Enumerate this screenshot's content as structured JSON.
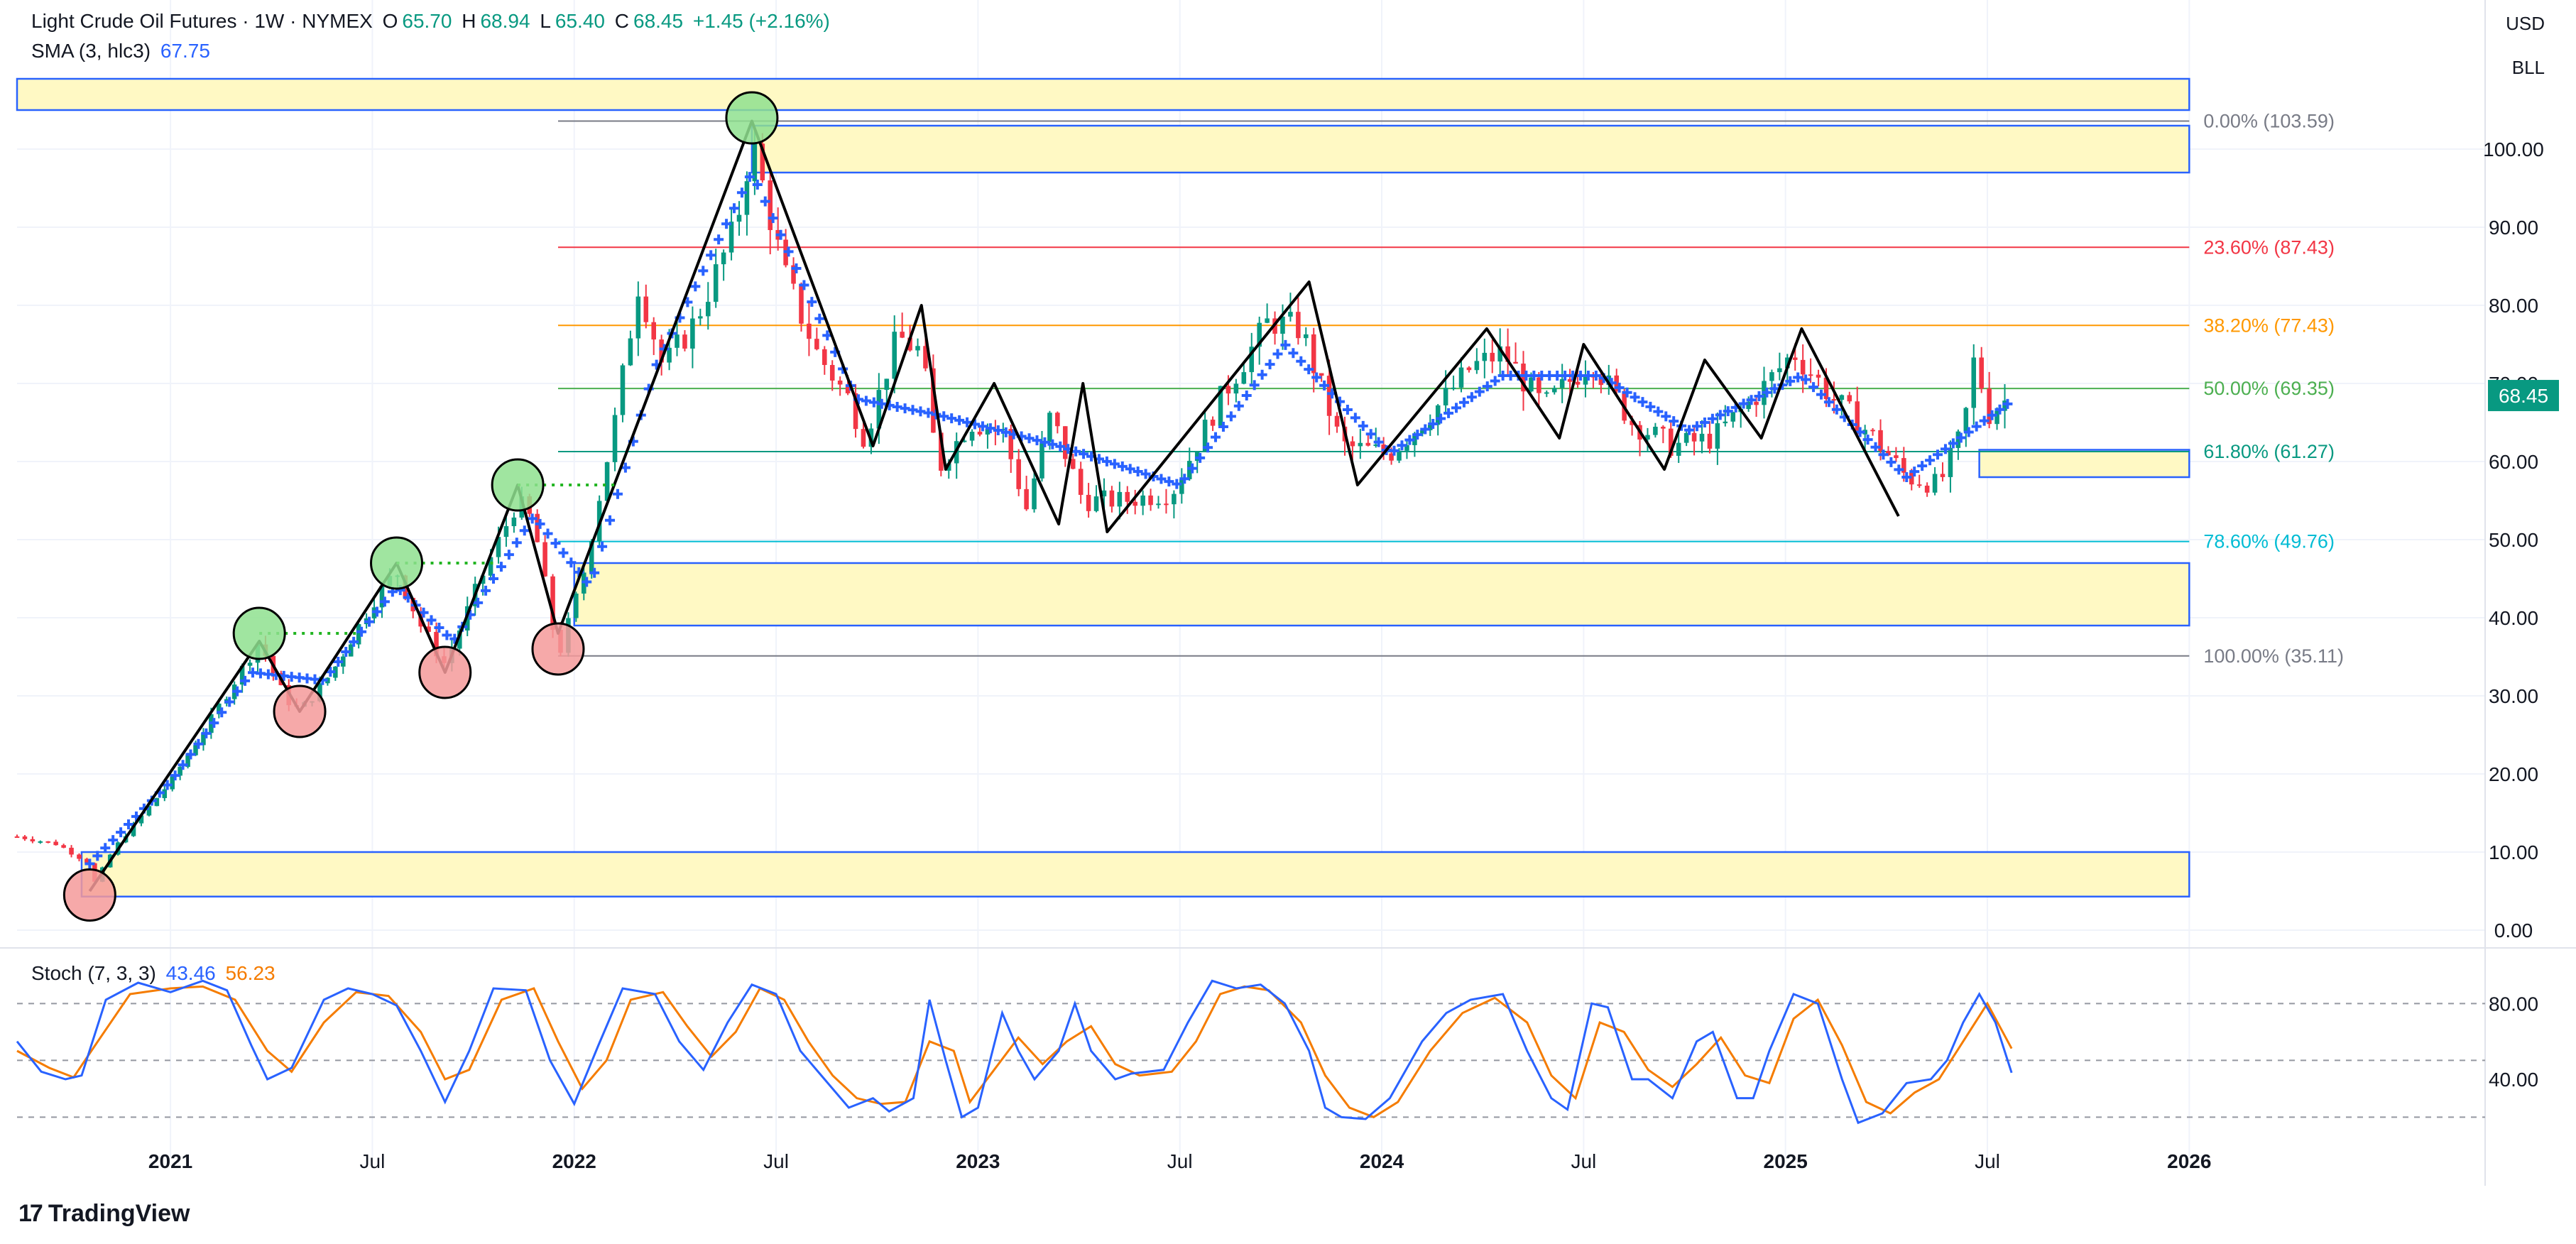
{
  "header": {
    "symbol": "Light Crude Oil Futures · 1W · NYMEX",
    "open_label": "O",
    "open": "65.70",
    "high_label": "H",
    "high": "68.94",
    "low_label": "L",
    "low": "65.40",
    "close_label": "C",
    "close": "68.45",
    "change": "+1.45 (+2.16%)",
    "sma_label": "SMA (3, hlc3)",
    "sma_value": "67.75"
  },
  "axis_buttons": {
    "currency": "USD",
    "scale": "BLL"
  },
  "last_price": "68.45",
  "colors": {
    "up": "#089981",
    "down": "#f23645",
    "sma": "#2962ff",
    "stoch_k": "#2962ff",
    "stoch_d": "#f57c00",
    "zone_fill": "#fff9c4",
    "zone_border": "#2962ff"
  },
  "chart_data": {
    "type": "candlestick",
    "price_axis": {
      "ticks": [
        "0.00",
        "10.00",
        "20.00",
        "30.00",
        "40.00",
        "50.00",
        "60.00",
        "70.00",
        "80.00",
        "90.00",
        "100.00"
      ],
      "range": [
        0,
        110
      ]
    },
    "time_axis": {
      "labels": [
        {
          "t": 2021.0,
          "label": "2021"
        },
        {
          "t": 2021.5,
          "label": "Jul"
        },
        {
          "t": 2022.0,
          "label": "2022"
        },
        {
          "t": 2022.5,
          "label": "Jul"
        },
        {
          "t": 2023.0,
          "label": "2023"
        },
        {
          "t": 2023.5,
          "label": "Jul"
        },
        {
          "t": 2024.0,
          "label": "2024"
        },
        {
          "t": 2024.5,
          "label": "Jul"
        },
        {
          "t": 2025.0,
          "label": "2025"
        },
        {
          "t": 2025.5,
          "label": "Jul"
        },
        {
          "t": 2026.0,
          "label": "2026"
        }
      ],
      "range": [
        2020.62,
        2026.68
      ]
    },
    "price_path": [
      [
        2020.62,
        12.0
      ],
      [
        2020.72,
        11.0
      ],
      [
        2020.8,
        8.5
      ],
      [
        2020.8,
        5.0
      ],
      [
        2020.86,
        10.5
      ],
      [
        2021.0,
        19.0
      ],
      [
        2021.1,
        27.0
      ],
      [
        2021.22,
        37.0
      ],
      [
        2021.28,
        30.0
      ],
      [
        2021.32,
        28.0
      ],
      [
        2021.4,
        33.0
      ],
      [
        2021.5,
        42.0
      ],
      [
        2021.56,
        46.0
      ],
      [
        2021.62,
        39.0
      ],
      [
        2021.68,
        34.0
      ],
      [
        2021.76,
        44.0
      ],
      [
        2021.86,
        55.0
      ],
      [
        2021.9,
        52.0
      ],
      [
        2021.96,
        35.0
      ],
      [
        2022.02,
        45.0
      ],
      [
        2022.1,
        65.0
      ],
      [
        2022.16,
        83.0
      ],
      [
        2022.22,
        72.0
      ],
      [
        2022.3,
        78.0
      ],
      [
        2022.4,
        90.0
      ],
      [
        2022.44,
        101.0
      ],
      [
        2022.52,
        84.0
      ],
      [
        2022.6,
        74.0
      ],
      [
        2022.68,
        68.0
      ],
      [
        2022.72,
        63.0
      ],
      [
        2022.8,
        76.0
      ],
      [
        2022.86,
        74.0
      ],
      [
        2022.9,
        59.0
      ],
      [
        2022.98,
        65.0
      ],
      [
        2023.06,
        64.0
      ],
      [
        2023.12,
        54.0
      ],
      [
        2023.18,
        66.0
      ],
      [
        2023.26,
        55.0
      ],
      [
        2023.36,
        55.0
      ],
      [
        2023.48,
        56.0
      ],
      [
        2023.6,
        68.0
      ],
      [
        2023.72,
        78.0
      ],
      [
        2023.8,
        77.0
      ],
      [
        2023.9,
        62.0
      ],
      [
        2024.02,
        61.0
      ],
      [
        2024.12,
        66.0
      ],
      [
        2024.22,
        72.0
      ],
      [
        2024.3,
        74.0
      ],
      [
        2024.4,
        67.0
      ],
      [
        2024.52,
        73.0
      ],
      [
        2024.62,
        65.0
      ],
      [
        2024.72,
        62.0
      ],
      [
        2024.82,
        63.0
      ],
      [
        2024.92,
        68.0
      ],
      [
        2025.02,
        74.0
      ],
      [
        2025.12,
        68.0
      ],
      [
        2025.22,
        63.0
      ],
      [
        2025.3,
        58.0
      ],
      [
        2025.38,
        57.0
      ],
      [
        2025.44,
        64.0
      ],
      [
        2025.47,
        74.0
      ],
      [
        2025.5,
        66.0
      ],
      [
        2025.56,
        68.45
      ]
    ],
    "sma_crosses": [
      [
        2020.8,
        8.5
      ],
      [
        2021.0,
        19.0
      ],
      [
        2021.2,
        33.0
      ],
      [
        2021.38,
        32.0
      ],
      [
        2021.56,
        44.0
      ],
      [
        2021.7,
        37.0
      ],
      [
        2021.9,
        53.0
      ],
      [
        2022.04,
        44.0
      ],
      [
        2022.2,
        72.0
      ],
      [
        2022.44,
        97.0
      ],
      [
        2022.7,
        68.0
      ],
      [
        2022.9,
        66.0
      ],
      [
        2023.2,
        62.0
      ],
      [
        2023.5,
        57.0
      ],
      [
        2023.76,
        75.0
      ],
      [
        2024.02,
        61.0
      ],
      [
        2024.3,
        71.0
      ],
      [
        2024.54,
        71.0
      ],
      [
        2024.76,
        64.0
      ],
      [
        2025.04,
        71.0
      ],
      [
        2025.3,
        58.0
      ],
      [
        2025.56,
        67.75
      ]
    ],
    "zigzag": [
      [
        2020.8,
        5.0
      ],
      [
        2021.22,
        37.0
      ],
      [
        2021.32,
        28.0
      ],
      [
        2021.56,
        47.0
      ],
      [
        2021.68,
        33.0
      ],
      [
        2021.86,
        57.0
      ],
      [
        2021.96,
        38.0
      ],
      [
        2022.44,
        103.59
      ],
      [
        2022.74,
        62.0
      ],
      [
        2022.86,
        80.0
      ],
      [
        2022.92,
        59.0
      ],
      [
        2023.04,
        70.0
      ],
      [
        2023.2,
        52.0
      ],
      [
        2023.26,
        70.0
      ],
      [
        2023.32,
        51.0
      ],
      [
        2023.82,
        83.0
      ],
      [
        2023.94,
        57.0
      ],
      [
        2024.26,
        77.0
      ],
      [
        2024.44,
        63.0
      ],
      [
        2024.5,
        75.0
      ],
      [
        2024.7,
        59.0
      ],
      [
        2024.8,
        73.0
      ],
      [
        2024.94,
        63.0
      ],
      [
        2025.04,
        77.0
      ],
      [
        2025.28,
        53.0
      ]
    ],
    "pivot_highs": [
      [
        2021.22,
        38.0
      ],
      [
        2021.56,
        47.0
      ],
      [
        2021.86,
        57.0
      ],
      [
        2022.44,
        104.0
      ]
    ],
    "pivot_lows": [
      [
        2020.8,
        4.5
      ],
      [
        2021.32,
        28.0
      ],
      [
        2021.68,
        33.0
      ],
      [
        2021.96,
        36.0
      ]
    ],
    "zones": [
      {
        "t1": 2020.62,
        "t2": 2026.0,
        "top": 109.0,
        "bottom": 105.0
      },
      {
        "t1": 2022.44,
        "t2": 2026.0,
        "top": 103.0,
        "bottom": 97.0
      },
      {
        "t1": 2022.0,
        "t2": 2026.0,
        "top": 47.0,
        "bottom": 39.0
      },
      {
        "t1": 2025.48,
        "t2": 2026.0,
        "top": 61.5,
        "bottom": 58.0
      },
      {
        "t1": 2020.78,
        "t2": 2026.0,
        "top": 10.0,
        "bottom": 4.3
      }
    ],
    "fib_levels": [
      {
        "label": "0.00% (103.59)",
        "value": 103.59,
        "color": "#787b86"
      },
      {
        "label": "23.60% (87.43)",
        "value": 87.43,
        "color": "#f23645"
      },
      {
        "label": "38.20% (77.43)",
        "value": 77.43,
        "color": "#ff9800"
      },
      {
        "label": "50.00% (69.35)",
        "value": 69.35,
        "color": "#4caf50"
      },
      {
        "label": "61.80% (61.27)",
        "value": 61.27,
        "color": "#089981"
      },
      {
        "label": "78.60% (49.76)",
        "value": 49.76,
        "color": "#00bcd4"
      },
      {
        "label": "100.00% (35.11)",
        "value": 35.11,
        "color": "#787b86"
      }
    ],
    "fib_start_t": 2021.96,
    "fib_end_t": 2026.0,
    "stoch": {
      "label": "Stoch (7, 3, 3)",
      "k_value": "43.46",
      "d_value": "56.23",
      "axis_ticks": [
        "40.00",
        "80.00"
      ],
      "bands": [
        20,
        50,
        80
      ],
      "range": [
        10,
        100
      ],
      "k": [
        [
          2020.62,
          60
        ],
        [
          2020.68,
          44
        ],
        [
          2020.74,
          40
        ],
        [
          2020.78,
          42
        ],
        [
          2020.84,
          82
        ],
        [
          2020.92,
          91
        ],
        [
          2021.0,
          86
        ],
        [
          2021.08,
          92
        ],
        [
          2021.14,
          87
        ],
        [
          2021.2,
          58
        ],
        [
          2021.24,
          40
        ],
        [
          2021.3,
          46
        ],
        [
          2021.38,
          82
        ],
        [
          2021.44,
          88
        ],
        [
          2021.5,
          85
        ],
        [
          2021.56,
          79
        ],
        [
          2021.62,
          55
        ],
        [
          2021.68,
          28
        ],
        [
          2021.74,
          55
        ],
        [
          2021.8,
          88
        ],
        [
          2021.88,
          87
        ],
        [
          2021.94,
          50
        ],
        [
          2022.0,
          27
        ],
        [
          2022.06,
          58
        ],
        [
          2022.12,
          88
        ],
        [
          2022.2,
          85
        ],
        [
          2022.26,
          60
        ],
        [
          2022.32,
          45
        ],
        [
          2022.38,
          70
        ],
        [
          2022.44,
          90
        ],
        [
          2022.5,
          85
        ],
        [
          2022.56,
          55
        ],
        [
          2022.62,
          40
        ],
        [
          2022.68,
          25
        ],
        [
          2022.74,
          30
        ],
        [
          2022.78,
          23
        ],
        [
          2022.84,
          30
        ],
        [
          2022.88,
          82
        ],
        [
          2022.92,
          50
        ],
        [
          2022.96,
          20
        ],
        [
          2023.0,
          25
        ],
        [
          2023.06,
          75
        ],
        [
          2023.1,
          55
        ],
        [
          2023.14,
          40
        ],
        [
          2023.2,
          55
        ],
        [
          2023.24,
          80
        ],
        [
          2023.28,
          55
        ],
        [
          2023.34,
          40
        ],
        [
          2023.38,
          43
        ],
        [
          2023.46,
          45
        ],
        [
          2023.52,
          70
        ],
        [
          2023.58,
          92
        ],
        [
          2023.64,
          88
        ],
        [
          2023.7,
          90
        ],
        [
          2023.76,
          80
        ],
        [
          2023.82,
          55
        ],
        [
          2023.86,
          25
        ],
        [
          2023.9,
          20
        ],
        [
          2023.96,
          19
        ],
        [
          2024.02,
          30
        ],
        [
          2024.1,
          60
        ],
        [
          2024.16,
          75
        ],
        [
          2024.22,
          82
        ],
        [
          2024.3,
          85
        ],
        [
          2024.36,
          55
        ],
        [
          2024.42,
          30
        ],
        [
          2024.46,
          24
        ],
        [
          2024.52,
          80
        ],
        [
          2024.56,
          78
        ],
        [
          2024.62,
          40
        ],
        [
          2024.66,
          40
        ],
        [
          2024.72,
          30
        ],
        [
          2024.78,
          60
        ],
        [
          2024.82,
          65
        ],
        [
          2024.88,
          30
        ],
        [
          2024.92,
          30
        ],
        [
          2024.96,
          55
        ],
        [
          2025.02,
          85
        ],
        [
          2025.08,
          80
        ],
        [
          2025.14,
          40
        ],
        [
          2025.18,
          17
        ],
        [
          2025.24,
          22
        ],
        [
          2025.3,
          38
        ],
        [
          2025.36,
          40
        ],
        [
          2025.4,
          50
        ],
        [
          2025.44,
          70
        ],
        [
          2025.48,
          85
        ],
        [
          2025.52,
          70
        ],
        [
          2025.56,
          43.46
        ]
      ],
      "d": [
        [
          2020.62,
          55
        ],
        [
          2020.7,
          46
        ],
        [
          2020.76,
          41
        ],
        [
          2020.82,
          60
        ],
        [
          2020.9,
          85
        ],
        [
          2021.0,
          88
        ],
        [
          2021.08,
          89
        ],
        [
          2021.16,
          82
        ],
        [
          2021.24,
          55
        ],
        [
          2021.3,
          44
        ],
        [
          2021.38,
          70
        ],
        [
          2021.46,
          86
        ],
        [
          2021.54,
          84
        ],
        [
          2021.62,
          65
        ],
        [
          2021.68,
          40
        ],
        [
          2021.74,
          45
        ],
        [
          2021.82,
          82
        ],
        [
          2021.9,
          88
        ],
        [
          2021.96,
          60
        ],
        [
          2022.02,
          35
        ],
        [
          2022.08,
          50
        ],
        [
          2022.14,
          82
        ],
        [
          2022.22,
          86
        ],
        [
          2022.28,
          68
        ],
        [
          2022.34,
          52
        ],
        [
          2022.4,
          65
        ],
        [
          2022.46,
          88
        ],
        [
          2022.52,
          82
        ],
        [
          2022.58,
          60
        ],
        [
          2022.64,
          42
        ],
        [
          2022.7,
          30
        ],
        [
          2022.76,
          27
        ],
        [
          2022.82,
          28
        ],
        [
          2022.88,
          60
        ],
        [
          2022.94,
          55
        ],
        [
          2022.98,
          28
        ],
        [
          2023.04,
          45
        ],
        [
          2023.1,
          62
        ],
        [
          2023.16,
          48
        ],
        [
          2023.22,
          60
        ],
        [
          2023.28,
          68
        ],
        [
          2023.34,
          48
        ],
        [
          2023.4,
          42
        ],
        [
          2023.48,
          44
        ],
        [
          2023.54,
          60
        ],
        [
          2023.6,
          85
        ],
        [
          2023.66,
          89
        ],
        [
          2023.72,
          87
        ],
        [
          2023.8,
          70
        ],
        [
          2023.86,
          42
        ],
        [
          2023.92,
          25
        ],
        [
          2023.98,
          20
        ],
        [
          2024.04,
          28
        ],
        [
          2024.12,
          55
        ],
        [
          2024.2,
          75
        ],
        [
          2024.28,
          83
        ],
        [
          2024.36,
          70
        ],
        [
          2024.42,
          42
        ],
        [
          2024.48,
          30
        ],
        [
          2024.54,
          70
        ],
        [
          2024.6,
          65
        ],
        [
          2024.66,
          45
        ],
        [
          2024.72,
          36
        ],
        [
          2024.78,
          48
        ],
        [
          2024.84,
          62
        ],
        [
          2024.9,
          42
        ],
        [
          2024.96,
          38
        ],
        [
          2025.02,
          72
        ],
        [
          2025.08,
          82
        ],
        [
          2025.14,
          58
        ],
        [
          2025.2,
          28
        ],
        [
          2025.26,
          22
        ],
        [
          2025.32,
          33
        ],
        [
          2025.38,
          40
        ],
        [
          2025.44,
          60
        ],
        [
          2025.5,
          80
        ],
        [
          2025.56,
          56.23
        ]
      ]
    }
  },
  "branding": {
    "name": "TradingView"
  }
}
